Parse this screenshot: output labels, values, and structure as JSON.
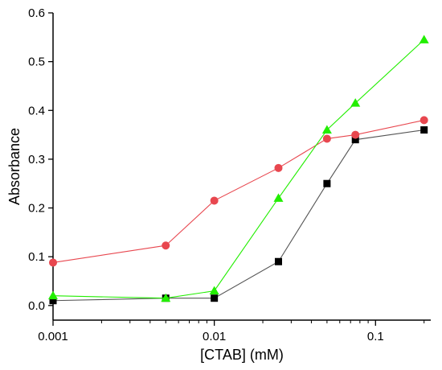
{
  "chart_data": {
    "type": "line",
    "title": "",
    "xlabel": "[CTAB] (mM)",
    "ylabel": "Absorbance",
    "xscale": "log",
    "xlim": [
      0.001,
      0.22
    ],
    "ylim": [
      -0.03,
      0.6
    ],
    "xticks": [
      0.001,
      0.01,
      0.1
    ],
    "xtick_labels": [
      "0.001",
      "0.01",
      "0.1"
    ],
    "yticks": [
      0.0,
      0.1,
      0.2,
      0.3,
      0.4,
      0.5,
      0.6
    ],
    "ytick_labels": [
      "0.0",
      "0.1",
      "0.2",
      "0.3",
      "0.4",
      "0.5",
      "0.6"
    ],
    "grid": false,
    "legend": "none",
    "series": [
      {
        "marker": "square",
        "color": "#000000",
        "line_color": "#555555",
        "x": [
          0.001,
          0.005,
          0.01,
          0.025,
          0.05,
          0.075,
          0.2
        ],
        "y": [
          0.01,
          0.015,
          0.015,
          0.09,
          0.25,
          0.34,
          0.36
        ]
      },
      {
        "marker": "circle",
        "color": "#e8474f",
        "line_color": "#e8474f",
        "x": [
          0.001,
          0.005,
          0.01,
          0.025,
          0.05,
          0.075,
          0.2
        ],
        "y": [
          0.088,
          0.123,
          0.215,
          0.282,
          0.342,
          0.35,
          0.38
        ]
      },
      {
        "marker": "triangle",
        "color": "#22ee00",
        "line_color": "#22ee00",
        "x": [
          0.001,
          0.005,
          0.01,
          0.025,
          0.05,
          0.075,
          0.2
        ],
        "y": [
          0.02,
          0.015,
          0.03,
          0.22,
          0.36,
          0.415,
          0.545
        ]
      }
    ]
  }
}
